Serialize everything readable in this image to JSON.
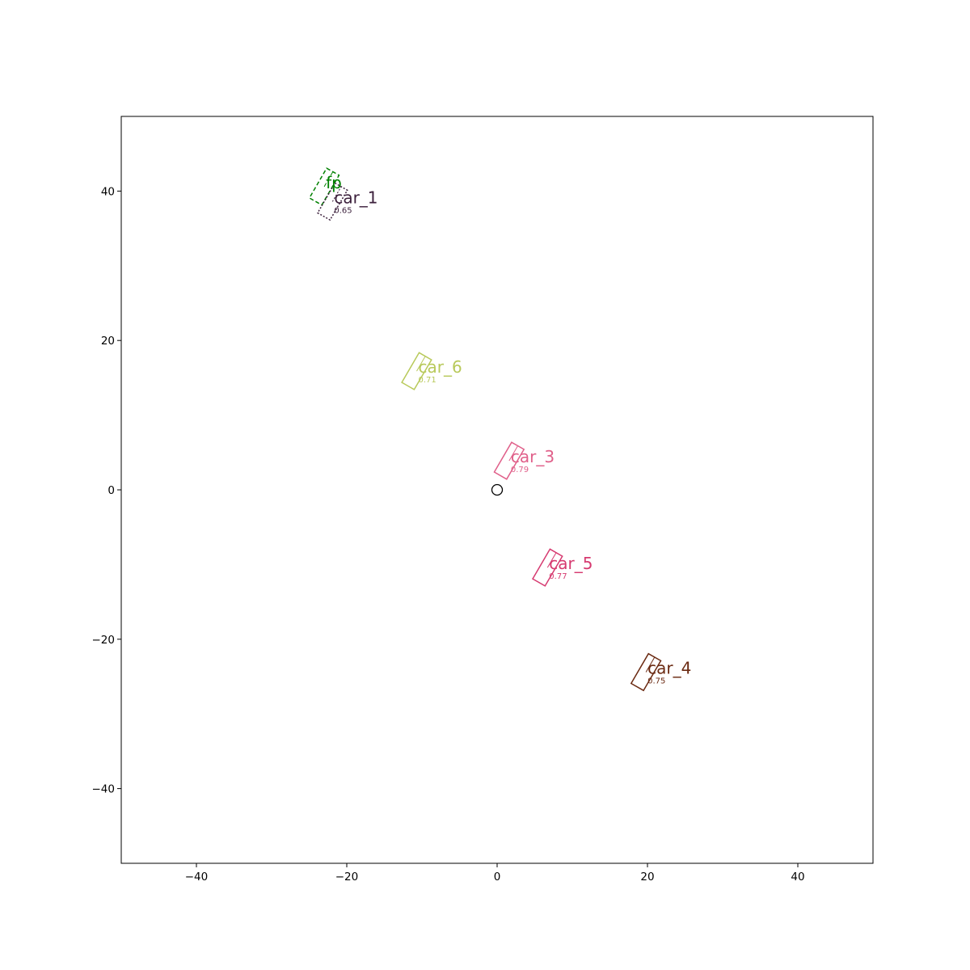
{
  "chart_data": {
    "type": "scatter",
    "title": "",
    "xlabel": "",
    "ylabel": "",
    "xlim": [
      -50,
      50
    ],
    "ylim": [
      -50,
      50
    ],
    "xticks": [
      -40,
      -20,
      0,
      20,
      40
    ],
    "yticks": [
      -40,
      -20,
      0,
      20,
      40
    ],
    "xtick_labels": [
      "−40",
      "−20",
      "0",
      "20",
      "40"
    ],
    "ytick_labels": [
      "−40",
      "−20",
      "0",
      "20",
      "40"
    ],
    "grid": false,
    "ego": {
      "x": 0,
      "y": 0,
      "marker": "circle"
    },
    "objects": [
      {
        "label": "fp",
        "score": "",
        "x": -23.0,
        "y": 40.6,
        "length": 4.6,
        "width": 1.9,
        "heading_deg": 60,
        "color": "#008000",
        "line": "dashed"
      },
      {
        "label": "car_1",
        "score": "0.65",
        "x": -21.9,
        "y": 38.6,
        "length": 4.6,
        "width": 1.9,
        "heading_deg": 60,
        "color": "#3b1f3b",
        "line": "dotted"
      },
      {
        "label": "car_6",
        "score": "0.71",
        "x": -10.7,
        "y": 15.9,
        "length": 4.6,
        "width": 1.9,
        "heading_deg": 60,
        "color": "#b8c95a",
        "line": "solid"
      },
      {
        "label": "car_3",
        "score": "0.79",
        "x": 1.6,
        "y": 3.9,
        "length": 4.6,
        "width": 1.9,
        "heading_deg": 60,
        "color": "#e0608a",
        "line": "solid"
      },
      {
        "label": "car_5",
        "score": "0.77",
        "x": 6.7,
        "y": -10.4,
        "length": 4.6,
        "width": 1.9,
        "heading_deg": 60,
        "color": "#d63a70",
        "line": "solid"
      },
      {
        "label": "car_4",
        "score": "0.75",
        "x": 19.8,
        "y": -24.4,
        "length": 4.6,
        "width": 1.9,
        "heading_deg": 60,
        "color": "#6b2a12",
        "line": "solid"
      }
    ]
  }
}
